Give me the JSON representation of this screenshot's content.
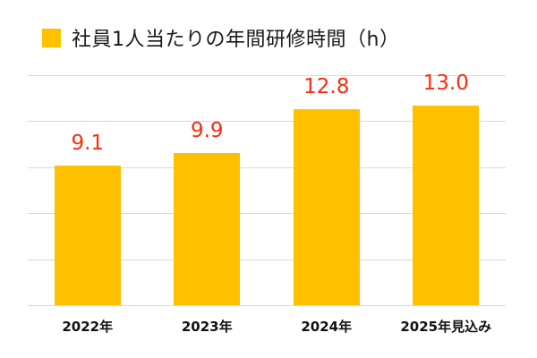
{
  "legend": {
    "label": "社員1人当たりの年間研修時間（h）",
    "color": "#FFC000"
  },
  "colors": {
    "bar": "#FFC000",
    "value_label": "#FF2A0D",
    "grid": "#d9d9d9"
  },
  "chart_data": {
    "type": "bar",
    "title": "",
    "categories": [
      "2022年",
      "2023年",
      "2024年",
      "2025年見込み"
    ],
    "series": [
      {
        "name": "社員1人当たりの年間研修時間（h）",
        "values": [
          9.1,
          9.9,
          12.8,
          13.0
        ]
      }
    ],
    "value_labels": [
      "9.1",
      "9.9",
      "12.8",
      "13.0"
    ],
    "xlabel": "",
    "ylabel": "",
    "ylim": [
      0,
      15
    ],
    "y_grid_step": 3,
    "grid": true,
    "y_axis_labels_visible": false,
    "legend_position": "top"
  }
}
